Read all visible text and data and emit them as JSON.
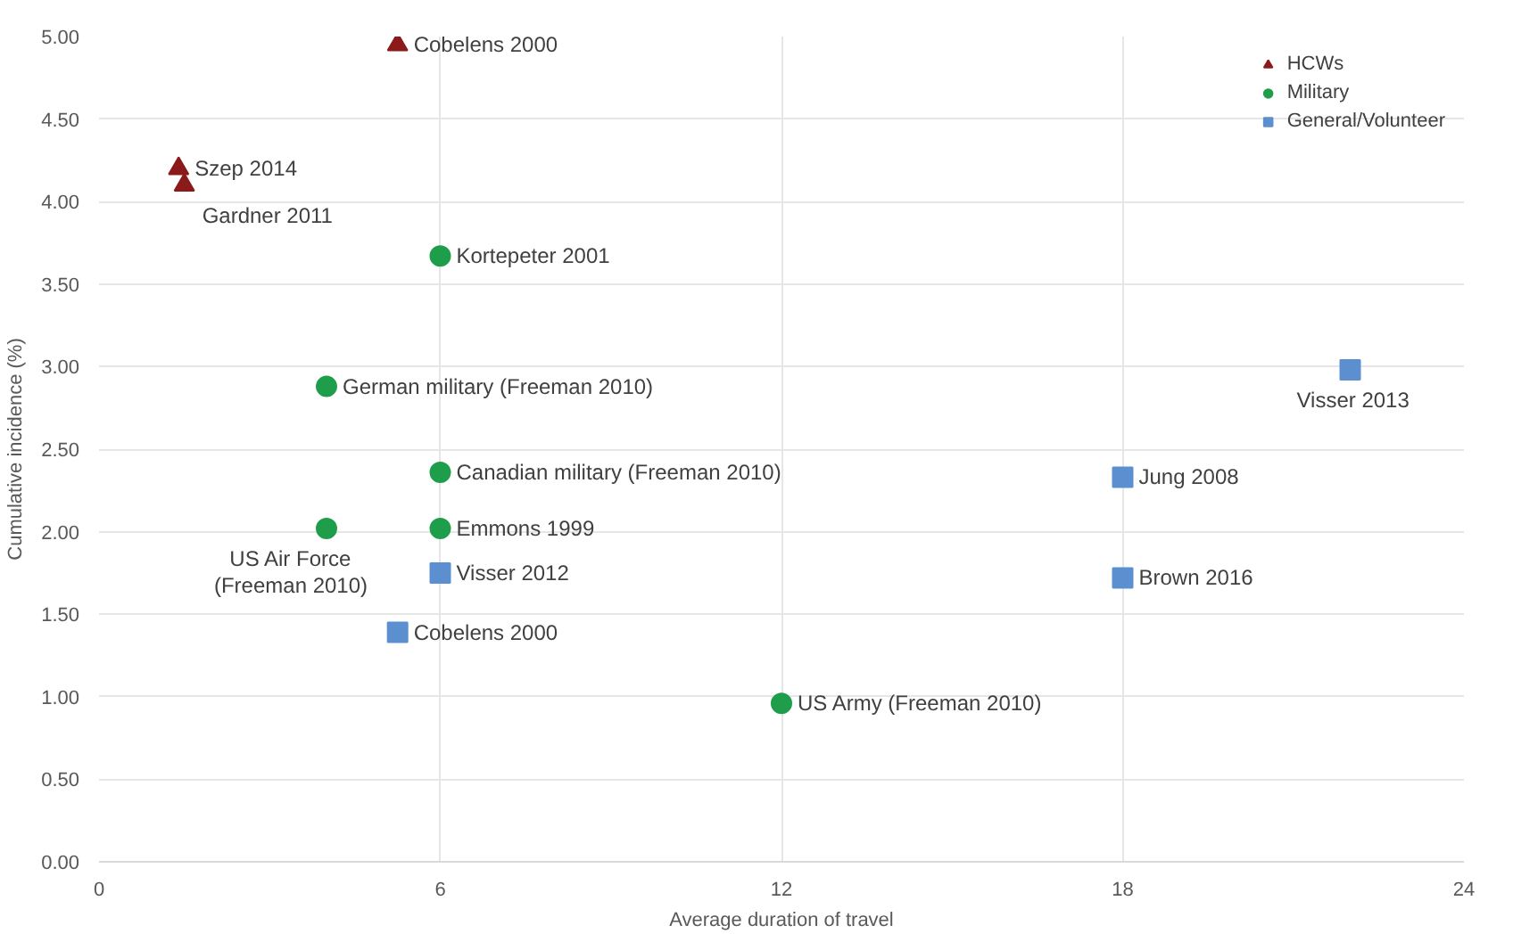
{
  "chart_data": {
    "type": "scatter",
    "xlabel": "Average duration of travel",
    "ylabel": "Cumulative incidence (%)",
    "xlim": [
      0,
      24
    ],
    "xticks": [
      0,
      6,
      12,
      18,
      24
    ],
    "ylim": [
      0,
      5
    ],
    "yticks": [
      {
        "value": 0,
        "label": "0.00"
      },
      {
        "value": 0.5,
        "label": "0.50"
      },
      {
        "value": 1,
        "label": "1.00"
      },
      {
        "value": 1.5,
        "label": "1.50"
      },
      {
        "value": 2,
        "label": "2.00"
      },
      {
        "value": 2.5,
        "label": "2.50"
      },
      {
        "value": 3,
        "label": "3.00"
      },
      {
        "value": 3.5,
        "label": "3.50"
      },
      {
        "value": 4,
        "label": "4.00"
      },
      {
        "value": 4.5,
        "label": "4.50"
      },
      {
        "value": 5,
        "label": "5.00"
      }
    ],
    "grid": true,
    "legend": "top right",
    "series": [
      {
        "name": "HCWs",
        "color": "#8b1a1a",
        "marker": "triangle",
        "x": [
          5.25,
          1.4,
          1.5
        ],
        "values": [
          4.95,
          4.2,
          4.1
        ]
      },
      {
        "name": "Military",
        "color": "#1e9e4a",
        "marker": "circle",
        "x": [
          6,
          4,
          6,
          4,
          6,
          12
        ],
        "values": [
          3.67,
          2.88,
          2.36,
          2.02,
          2.02,
          0.96
        ]
      },
      {
        "name": "General/Volunteer",
        "color": "#5b8fd0",
        "marker": "square",
        "x": [
          6,
          5.25,
          18,
          18,
          22
        ],
        "values": [
          1.75,
          1.39,
          2.33,
          1.72,
          2.98
        ]
      }
    ],
    "annotations": [
      {
        "text": "Cobelens 2000",
        "x": 5.25,
        "y": 4.95
      },
      {
        "text": "Szep 2014",
        "x": 1.4,
        "y": 4.2
      },
      {
        "text": "Gardner 2011",
        "x": 1.5,
        "y": 4.1
      },
      {
        "text": "Kortepeter 2001",
        "x": 6,
        "y": 3.67
      },
      {
        "text": "German military (Freeman 2010)",
        "x": 4,
        "y": 2.88
      },
      {
        "text": "Canadian military (Freeman 2010)",
        "x": 6,
        "y": 2.36
      },
      {
        "text": "US Air Force\n(Freeman 2010)",
        "x": 4,
        "y": 2.02
      },
      {
        "text": "Emmons 1999",
        "x": 6,
        "y": 2.02
      },
      {
        "text": "US Army (Freeman 2010)",
        "x": 12,
        "y": 0.96
      },
      {
        "text": "Visser 2012",
        "x": 6,
        "y": 1.75
      },
      {
        "text": "Cobelens 2000",
        "x": 5.25,
        "y": 1.39
      },
      {
        "text": "Jung 2008",
        "x": 18,
        "y": 2.33
      },
      {
        "text": "Brown 2016",
        "x": 18,
        "y": 1.72
      },
      {
        "text": "Visser 2013",
        "x": 22,
        "y": 2.98
      }
    ]
  }
}
